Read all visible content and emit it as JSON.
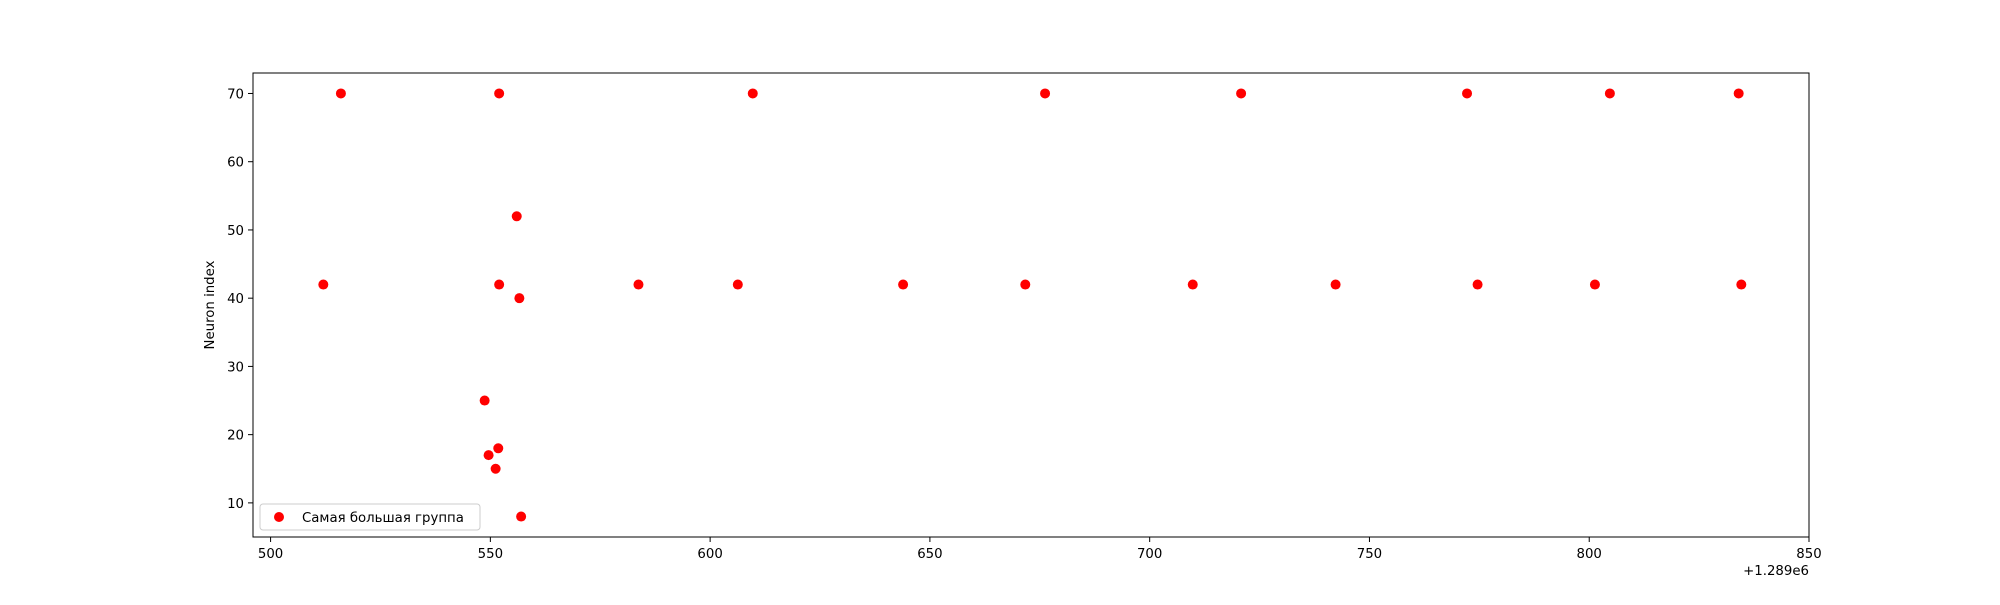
{
  "chart_data": {
    "type": "scatter",
    "title": "",
    "xlabel": "",
    "ylabel": "Neuron index",
    "x_offset_label": "+1.289e6",
    "xlim": [
      496,
      850
    ],
    "ylim": [
      5,
      73
    ],
    "xticks": [
      500,
      550,
      600,
      650,
      700,
      750,
      800,
      850
    ],
    "yticks": [
      10,
      20,
      30,
      40,
      50,
      60,
      70
    ],
    "grid": false,
    "legend_position": "lower left",
    "series": [
      {
        "name": "Самая большая группа",
        "color": "#ff0000",
        "marker": "circle",
        "points": [
          {
            "x": 512.0,
            "y": 42
          },
          {
            "x": 516.0,
            "y": 70
          },
          {
            "x": 548.7,
            "y": 25
          },
          {
            "x": 549.6,
            "y": 17
          },
          {
            "x": 551.2,
            "y": 15
          },
          {
            "x": 551.8,
            "y": 18
          },
          {
            "x": 552.0,
            "y": 70
          },
          {
            "x": 552.0,
            "y": 42
          },
          {
            "x": 556.0,
            "y": 52
          },
          {
            "x": 556.6,
            "y": 40
          },
          {
            "x": 557.0,
            "y": 8
          },
          {
            "x": 583.7,
            "y": 42
          },
          {
            "x": 606.3,
            "y": 42
          },
          {
            "x": 609.7,
            "y": 70
          },
          {
            "x": 643.9,
            "y": 42
          },
          {
            "x": 671.7,
            "y": 42
          },
          {
            "x": 676.2,
            "y": 70
          },
          {
            "x": 709.8,
            "y": 42
          },
          {
            "x": 720.8,
            "y": 70
          },
          {
            "x": 742.3,
            "y": 42
          },
          {
            "x": 772.2,
            "y": 70
          },
          {
            "x": 774.6,
            "y": 42
          },
          {
            "x": 801.3,
            "y": 42
          },
          {
            "x": 804.7,
            "y": 70
          },
          {
            "x": 834.0,
            "y": 70
          },
          {
            "x": 834.6,
            "y": 42
          }
        ]
      }
    ]
  }
}
